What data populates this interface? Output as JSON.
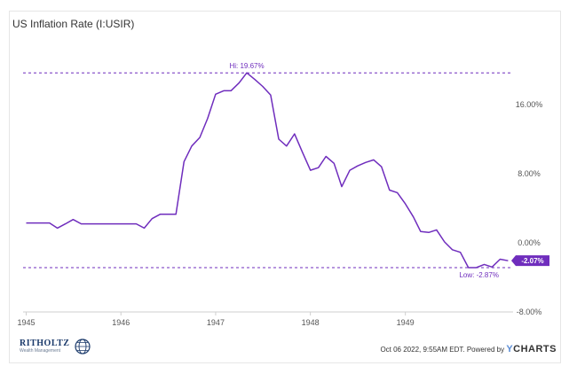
{
  "chart_data": {
    "type": "line",
    "title": "US Inflation Rate (I:USIR)",
    "series": [
      {
        "name": "",
        "color": "#6f2dbd",
        "x": [
          "1945-01",
          "1945-02",
          "1945-03",
          "1945-04",
          "1945-05",
          "1945-06",
          "1945-07",
          "1945-08",
          "1945-09",
          "1945-10",
          "1945-11",
          "1945-12",
          "1946-01",
          "1946-02",
          "1946-03",
          "1946-04",
          "1946-05",
          "1946-06",
          "1946-07",
          "1946-08",
          "1946-09",
          "1946-10",
          "1946-11",
          "1946-12",
          "1947-01",
          "1947-02",
          "1947-03",
          "1947-04",
          "1947-05",
          "1947-06",
          "1947-07",
          "1947-08",
          "1947-09",
          "1947-10",
          "1947-11",
          "1947-12",
          "1948-01",
          "1948-02",
          "1948-03",
          "1948-04",
          "1948-05",
          "1948-06",
          "1948-07",
          "1948-08",
          "1948-09",
          "1948-10",
          "1948-11",
          "1948-12",
          "1949-01",
          "1949-02",
          "1949-03",
          "1949-04",
          "1949-05",
          "1949-06",
          "1949-07",
          "1949-08",
          "1949-09",
          "1949-10",
          "1949-11",
          "1949-12",
          "1950-01",
          "1950-02"
        ],
        "values": [
          2.3,
          2.3,
          2.3,
          2.3,
          1.7,
          2.2,
          2.7,
          2.2,
          2.2,
          2.2,
          2.2,
          2.2,
          2.2,
          2.2,
          2.2,
          1.7,
          2.8,
          3.3,
          3.3,
          3.3,
          9.4,
          11.2,
          12.2,
          14.4,
          17.2,
          17.6,
          17.6,
          18.5,
          19.67,
          18.9,
          18.1,
          17.1,
          12.0,
          11.2,
          12.6,
          10.5,
          8.4,
          8.7,
          10.0,
          9.2,
          6.5,
          8.4,
          8.9,
          9.3,
          9.6,
          8.8,
          6.1,
          5.8,
          4.5,
          3.0,
          1.3,
          1.2,
          1.5,
          0.1,
          -0.8,
          -1.1,
          -2.87,
          -2.87,
          -2.5,
          -2.8,
          -1.9,
          -2.07
        ]
      }
    ],
    "xaxis": {
      "ticks": [
        "1945",
        "1946",
        "1947",
        "1948",
        "1949"
      ]
    },
    "yaxis": {
      "ticks": [
        "16.00%",
        "8.00%",
        "0.00%",
        "-8.00%"
      ],
      "tick_values": [
        16,
        8,
        0,
        -8
      ],
      "range": [
        -8,
        24
      ]
    },
    "annotations": {
      "high": {
        "label": "Hi: 19.67%",
        "value": 19.67
      },
      "low": {
        "label": "Low: -2.87%",
        "value": -2.87
      },
      "last": {
        "label": "-2.07%",
        "value": -2.07
      }
    },
    "grid": false
  },
  "branding": {
    "left_name": "RITHOLTZ",
    "left_sub": "Wealth Management",
    "footer_text": "Oct 06 2022, 9:55AM EDT. Powered by",
    "footer_logo_y": "Y",
    "footer_logo_rest": "CHARTS"
  }
}
